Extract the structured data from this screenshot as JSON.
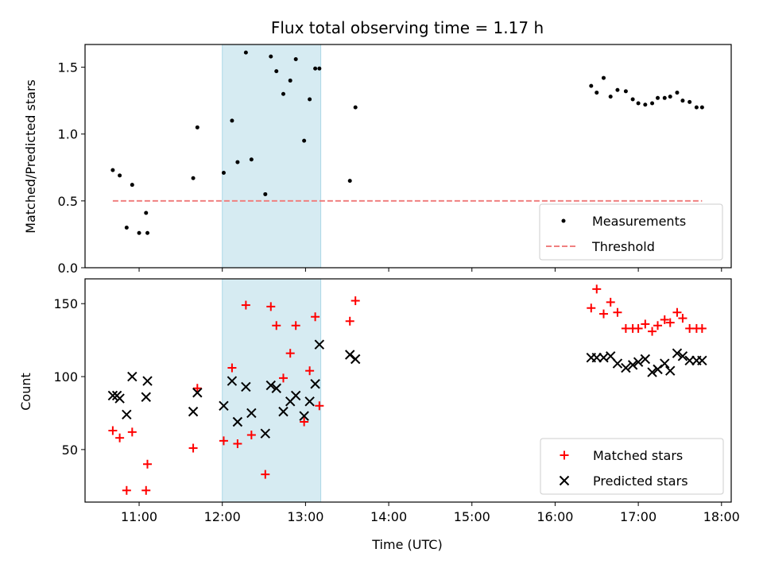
{
  "chart_data": [
    {
      "type": "scatter",
      "title": "Flux total observing time = 1.17 h",
      "xlabel": "",
      "ylabel": "Matched/Predicted stars",
      "ylim": [
        0,
        1.67
      ],
      "yticks": [
        "0.0",
        "0.5",
        "1.0",
        "1.5"
      ],
      "highlight_span": [
        "12:00",
        "13:11"
      ],
      "legend_position": "lower-right",
      "series": [
        {
          "name": "Measurements",
          "marker": "dot",
          "color": "#000000",
          "x": [
            "10:41",
            "10:46",
            "10:51",
            "10:55",
            "11:00",
            "11:05",
            "11:06",
            "11:39",
            "11:42",
            "12:01",
            "12:07",
            "12:11",
            "12:17",
            "12:21",
            "12:31",
            "12:35",
            "12:39",
            "12:44",
            "12:49",
            "12:53",
            "12:59",
            "13:03",
            "13:07",
            "13:10",
            "13:32",
            "13:36",
            "16:26",
            "16:30",
            "16:35",
            "16:40",
            "16:45",
            "16:51",
            "16:56",
            "17:00",
            "17:05",
            "17:10",
            "17:14",
            "17:19",
            "17:23",
            "17:28",
            "17:32",
            "17:37",
            "17:42",
            "17:46"
          ],
          "values": [
            0.73,
            0.69,
            0.3,
            0.62,
            0.26,
            0.41,
            0.26,
            0.67,
            1.05,
            0.71,
            1.1,
            0.79,
            1.61,
            0.81,
            0.55,
            1.58,
            1.47,
            1.3,
            1.4,
            1.56,
            0.95,
            1.26,
            1.49,
            1.49,
            0.65,
            1.2,
            1.36,
            1.31,
            1.42,
            1.28,
            1.33,
            1.32,
            1.26,
            1.23,
            1.22,
            1.23,
            1.27,
            1.27,
            1.28,
            1.31,
            1.25,
            1.24,
            1.2,
            1.2
          ]
        },
        {
          "name": "Threshold",
          "style": "dashed",
          "color": "#f08080",
          "x": [
            "10:41",
            "17:46"
          ],
          "values": [
            0.5,
            0.5
          ]
        }
      ]
    },
    {
      "type": "scatter",
      "xlabel": "Time (UTC)",
      "ylabel": "Count",
      "ylim": [
        14,
        167
      ],
      "yticks": [
        "50",
        "100",
        "150"
      ],
      "xlim": [
        "10:21",
        "18:07"
      ],
      "xticks": [
        "11:00",
        "12:00",
        "13:00",
        "14:00",
        "15:00",
        "16:00",
        "17:00",
        "18:00"
      ],
      "highlight_span": [
        "12:00",
        "13:11"
      ],
      "legend_position": "lower-right",
      "series": [
        {
          "name": "Matched stars",
          "marker": "plus",
          "color": "#ff0000",
          "x": [
            "10:41",
            "10:46",
            "10:51",
            "10:55",
            "11:05",
            "11:06",
            "11:39",
            "11:42",
            "12:01",
            "12:07",
            "12:11",
            "12:17",
            "12:21",
            "12:31",
            "12:35",
            "12:39",
            "12:44",
            "12:49",
            "12:53",
            "12:59",
            "13:03",
            "13:07",
            "13:10",
            "13:32",
            "13:36",
            "16:26",
            "16:30",
            "16:35",
            "16:40",
            "16:45",
            "16:51",
            "16:56",
            "17:00",
            "17:05",
            "17:10",
            "17:14",
            "17:19",
            "17:23",
            "17:28",
            "17:32",
            "17:37",
            "17:42",
            "17:46"
          ],
          "values": [
            63,
            58,
            22,
            62,
            22,
            40,
            51,
            92,
            56,
            106,
            54,
            149,
            60,
            33,
            148,
            135,
            99,
            116,
            135,
            69,
            104,
            141,
            80,
            138,
            152,
            147,
            160,
            143,
            151,
            144,
            133,
            133,
            133,
            136,
            131,
            135,
            139,
            137,
            144,
            140,
            133,
            133,
            133
          ]
        },
        {
          "name": "Predicted stars",
          "marker": "x",
          "color": "#000000",
          "x": [
            "10:41",
            "10:44",
            "10:46",
            "10:51",
            "10:55",
            "11:05",
            "11:06",
            "11:39",
            "11:42",
            "12:01",
            "12:07",
            "12:11",
            "12:17",
            "12:21",
            "12:31",
            "12:35",
            "12:39",
            "12:44",
            "12:49",
            "12:53",
            "12:59",
            "13:03",
            "13:07",
            "13:10",
            "13:32",
            "13:36",
            "16:26",
            "16:30",
            "16:35",
            "16:40",
            "16:45",
            "16:51",
            "16:56",
            "17:00",
            "17:05",
            "17:10",
            "17:14",
            "17:19",
            "17:23",
            "17:28",
            "17:32",
            "17:37",
            "17:42",
            "17:46"
          ],
          "values": [
            87,
            87,
            85,
            74,
            100,
            86,
            97,
            76,
            89,
            80,
            97,
            69,
            93,
            75,
            61,
            94,
            92,
            76,
            83,
            87,
            73,
            83,
            95,
            122,
            115,
            112,
            113,
            113,
            113,
            114,
            109,
            106,
            108,
            110,
            112,
            103,
            105,
            109,
            104,
            116,
            114,
            111,
            111,
            111
          ]
        }
      ]
    }
  ]
}
